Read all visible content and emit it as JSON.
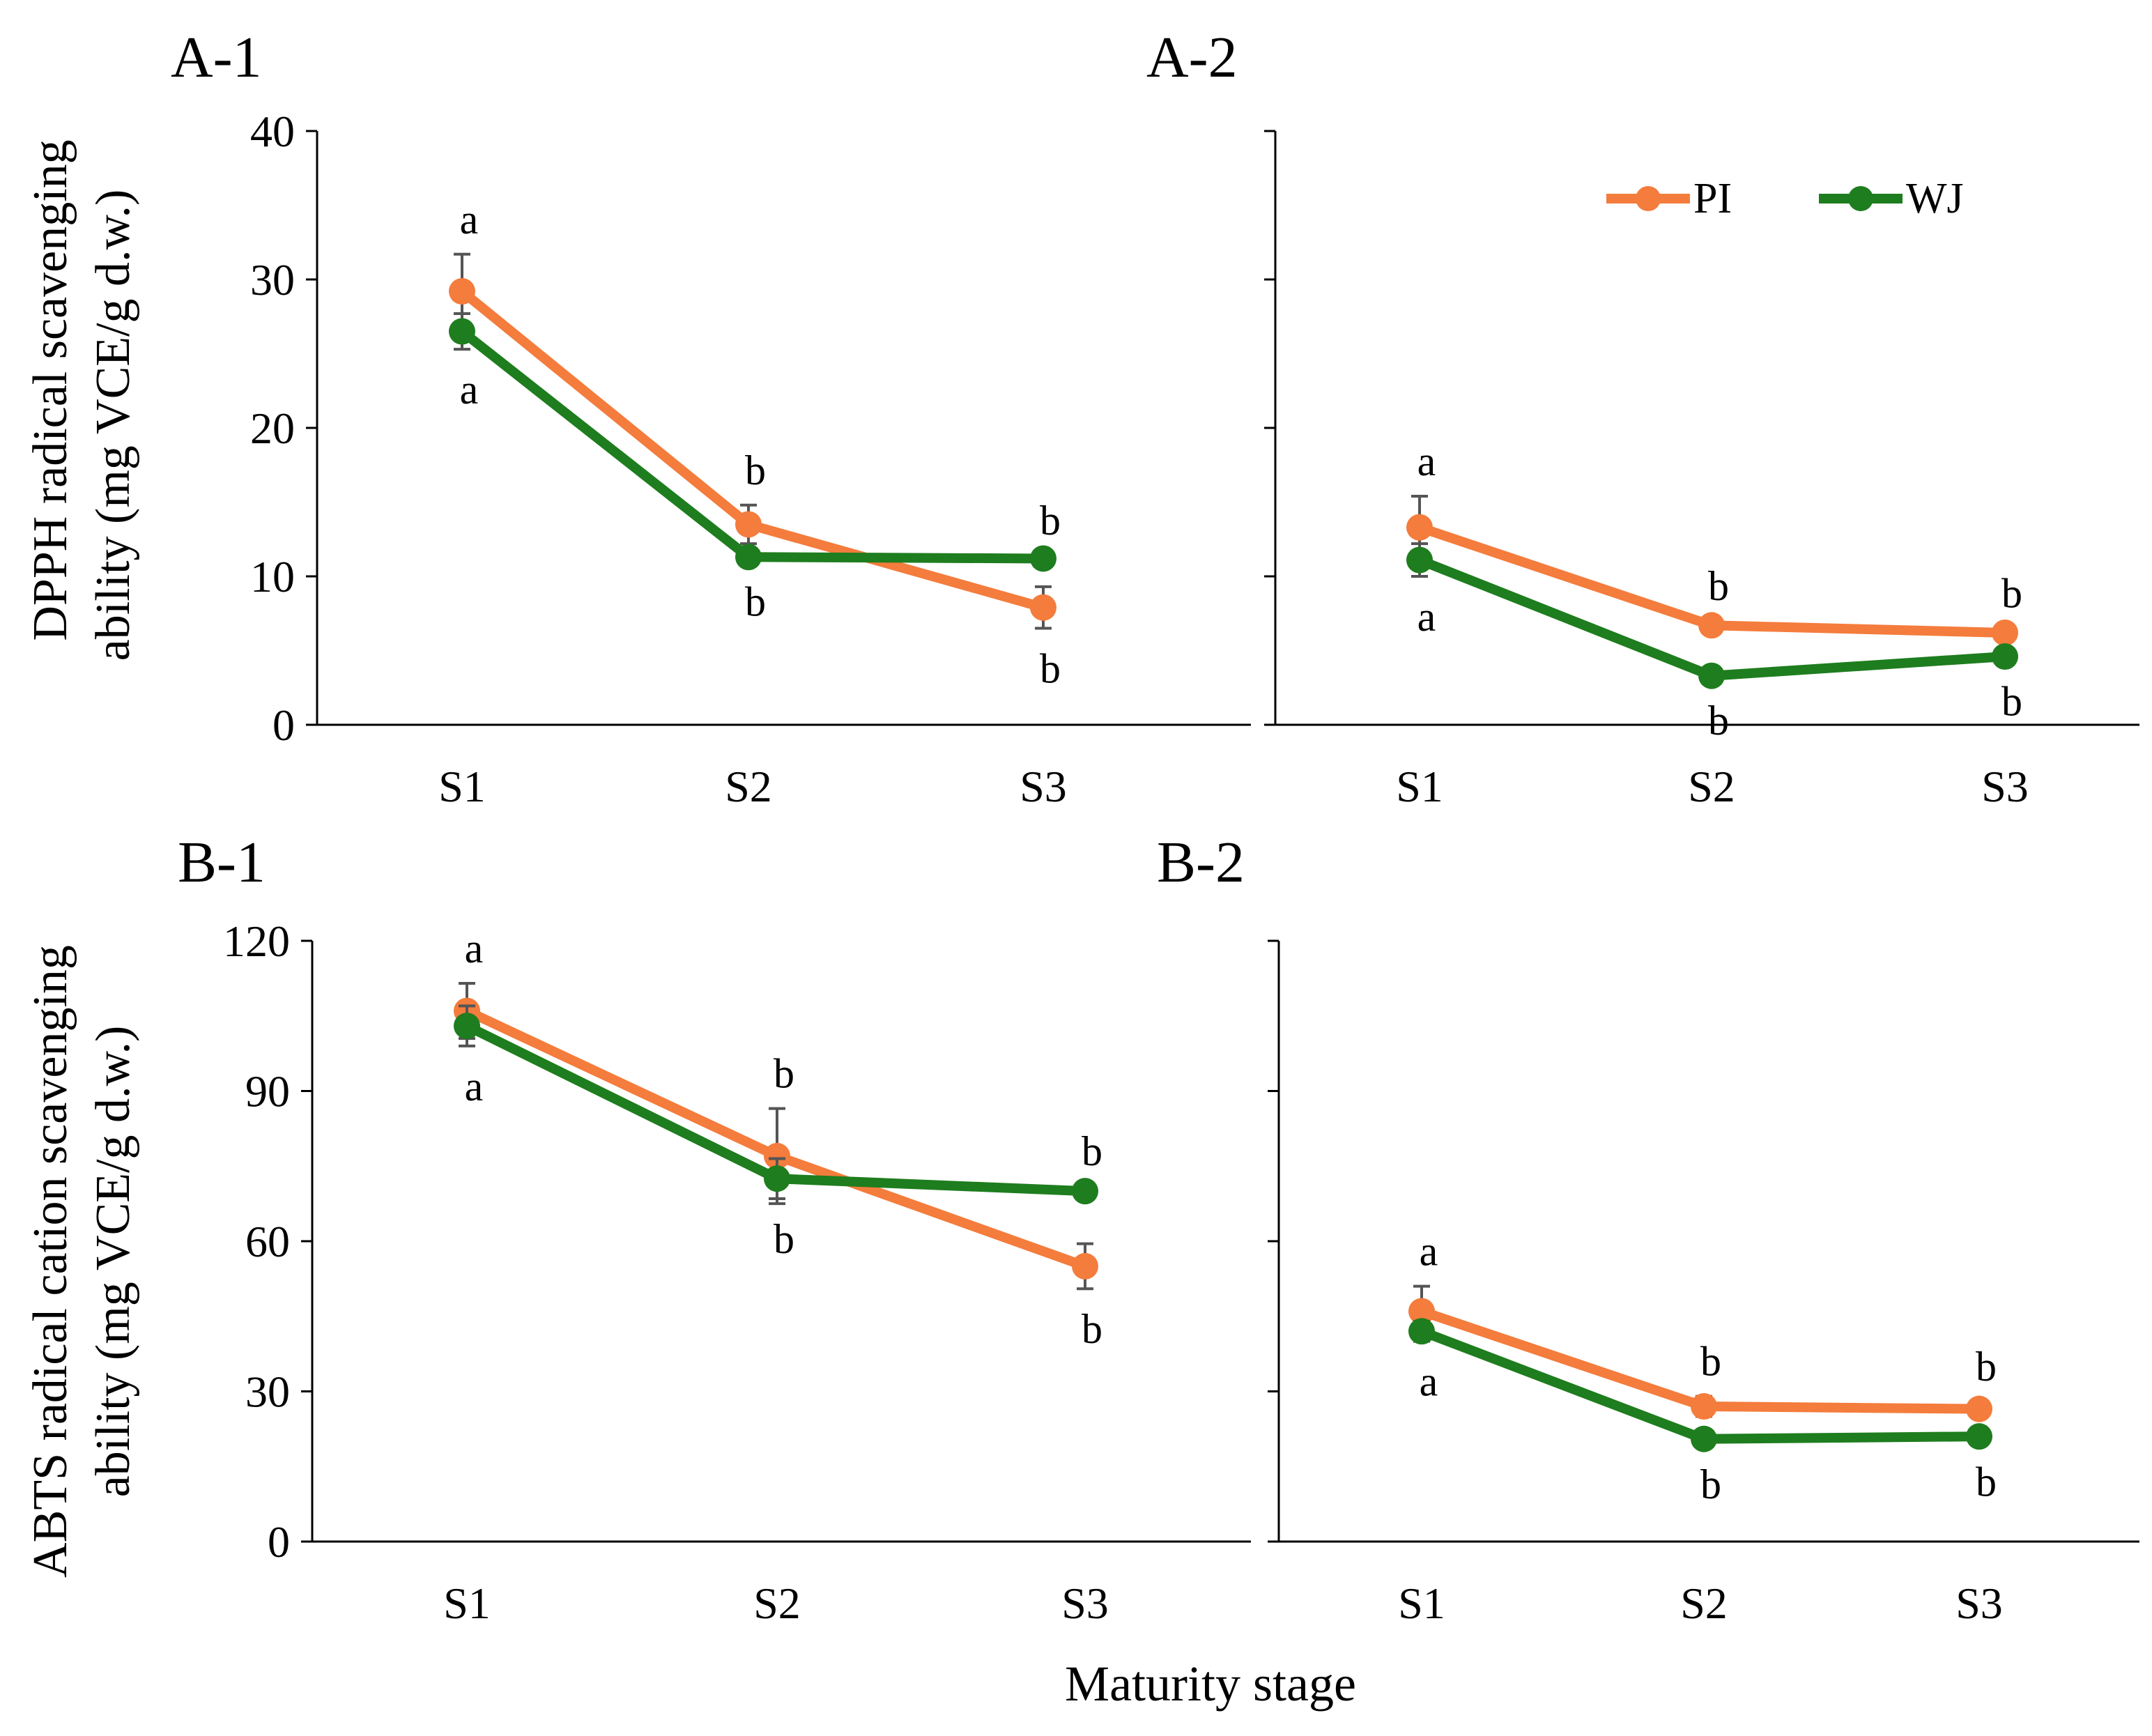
{
  "figure": {
    "xlabel": "Maturity stage",
    "ylabel_top_line1": "DPPH radical scavenging",
    "ylabel_top_line2": "ability (mg VCE/g d.w.)",
    "ylabel_bottom_line1": "ABTS radical cation scavenging",
    "ylabel_bottom_line2": "ability (mg VCE/g d.w.)"
  },
  "legend": {
    "items": [
      {
        "label": "PI",
        "color": "#f47c3c"
      },
      {
        "label": "WJ",
        "color": "#1e7d1e"
      }
    ]
  },
  "chart_data": [
    {
      "id": "A-1",
      "title": "A-1",
      "type": "line",
      "categories": [
        "S1",
        "S2",
        "S3"
      ],
      "ylim": [
        0,
        40
      ],
      "yticks": [
        0,
        10,
        20,
        30,
        40
      ],
      "show_ytick_labels": true,
      "series": [
        {
          "name": "PI",
          "color": "#f47c3c",
          "values": [
            29.2,
            13.5,
            7.9
          ],
          "errors": [
            2.5,
            1.3,
            1.4
          ],
          "letters": [
            "a",
            "b",
            "b"
          ],
          "letter_pos": [
            "above",
            "above",
            "below"
          ]
        },
        {
          "name": "WJ",
          "color": "#1e7d1e",
          "values": [
            26.5,
            11.3,
            11.2
          ],
          "errors": [
            1.2,
            0.3,
            0.2
          ],
          "letters": [
            "a",
            "b",
            "b"
          ],
          "letter_pos": [
            "below",
            "below",
            "above"
          ]
        }
      ]
    },
    {
      "id": "A-2",
      "title": "A-2",
      "type": "line",
      "categories": [
        "S1",
        "S2",
        "S3"
      ],
      "ylim": [
        0,
        40
      ],
      "yticks": [
        0,
        10,
        20,
        30,
        40
      ],
      "show_ytick_labels": false,
      "series": [
        {
          "name": "PI",
          "color": "#f47c3c",
          "values": [
            13.3,
            6.7,
            6.2
          ],
          "errors": [
            2.1,
            0.3,
            0.3
          ],
          "letters": [
            "a",
            "b",
            "b"
          ],
          "letter_pos": [
            "above",
            "above",
            "above"
          ]
        },
        {
          "name": "WJ",
          "color": "#1e7d1e",
          "values": [
            11.1,
            3.3,
            4.6
          ],
          "errors": [
            1.1,
            0.3,
            0.3
          ],
          "letters": [
            "a",
            "b",
            "b"
          ],
          "letter_pos": [
            "below",
            "below",
            "below"
          ]
        }
      ]
    },
    {
      "id": "B-1",
      "title": "B-1",
      "type": "line",
      "categories": [
        "S1",
        "S2",
        "S3"
      ],
      "ylim": [
        0,
        120
      ],
      "yticks": [
        0,
        30,
        60,
        90,
        120
      ],
      "show_ytick_labels": true,
      "series": [
        {
          "name": "PI",
          "color": "#f47c3c",
          "values": [
            106,
            77,
            55
          ],
          "errors": [
            5.5,
            9.5,
            4.5
          ],
          "letters": [
            "a",
            "b",
            "b"
          ],
          "letter_pos": [
            "above",
            "above",
            "below"
          ]
        },
        {
          "name": "WJ",
          "color": "#1e7d1e",
          "values": [
            103,
            72.5,
            70
          ],
          "errors": [
            4,
            4,
            1
          ],
          "letters": [
            "a",
            "b",
            "b"
          ],
          "letter_pos": [
            "below",
            "below",
            "above"
          ]
        }
      ]
    },
    {
      "id": "B-2",
      "title": "B-2",
      "type": "line",
      "categories": [
        "S1",
        "S2",
        "S3"
      ],
      "ylim": [
        0,
        120
      ],
      "yticks": [
        0,
        30,
        60,
        90,
        120
      ],
      "show_ytick_labels": false,
      "series": [
        {
          "name": "PI",
          "color": "#f47c3c",
          "values": [
            46,
            27,
            26.5
          ],
          "errors": [
            5,
            2,
            1.5
          ],
          "letters": [
            "a",
            "b",
            "b"
          ],
          "letter_pos": [
            "above",
            "above",
            "above"
          ]
        },
        {
          "name": "WJ",
          "color": "#1e7d1e",
          "values": [
            42,
            20.5,
            21
          ],
          "errors": [
            2,
            1,
            1
          ],
          "letters": [
            "a",
            "b",
            "b"
          ],
          "letter_pos": [
            "below",
            "below",
            "below"
          ]
        }
      ]
    }
  ]
}
